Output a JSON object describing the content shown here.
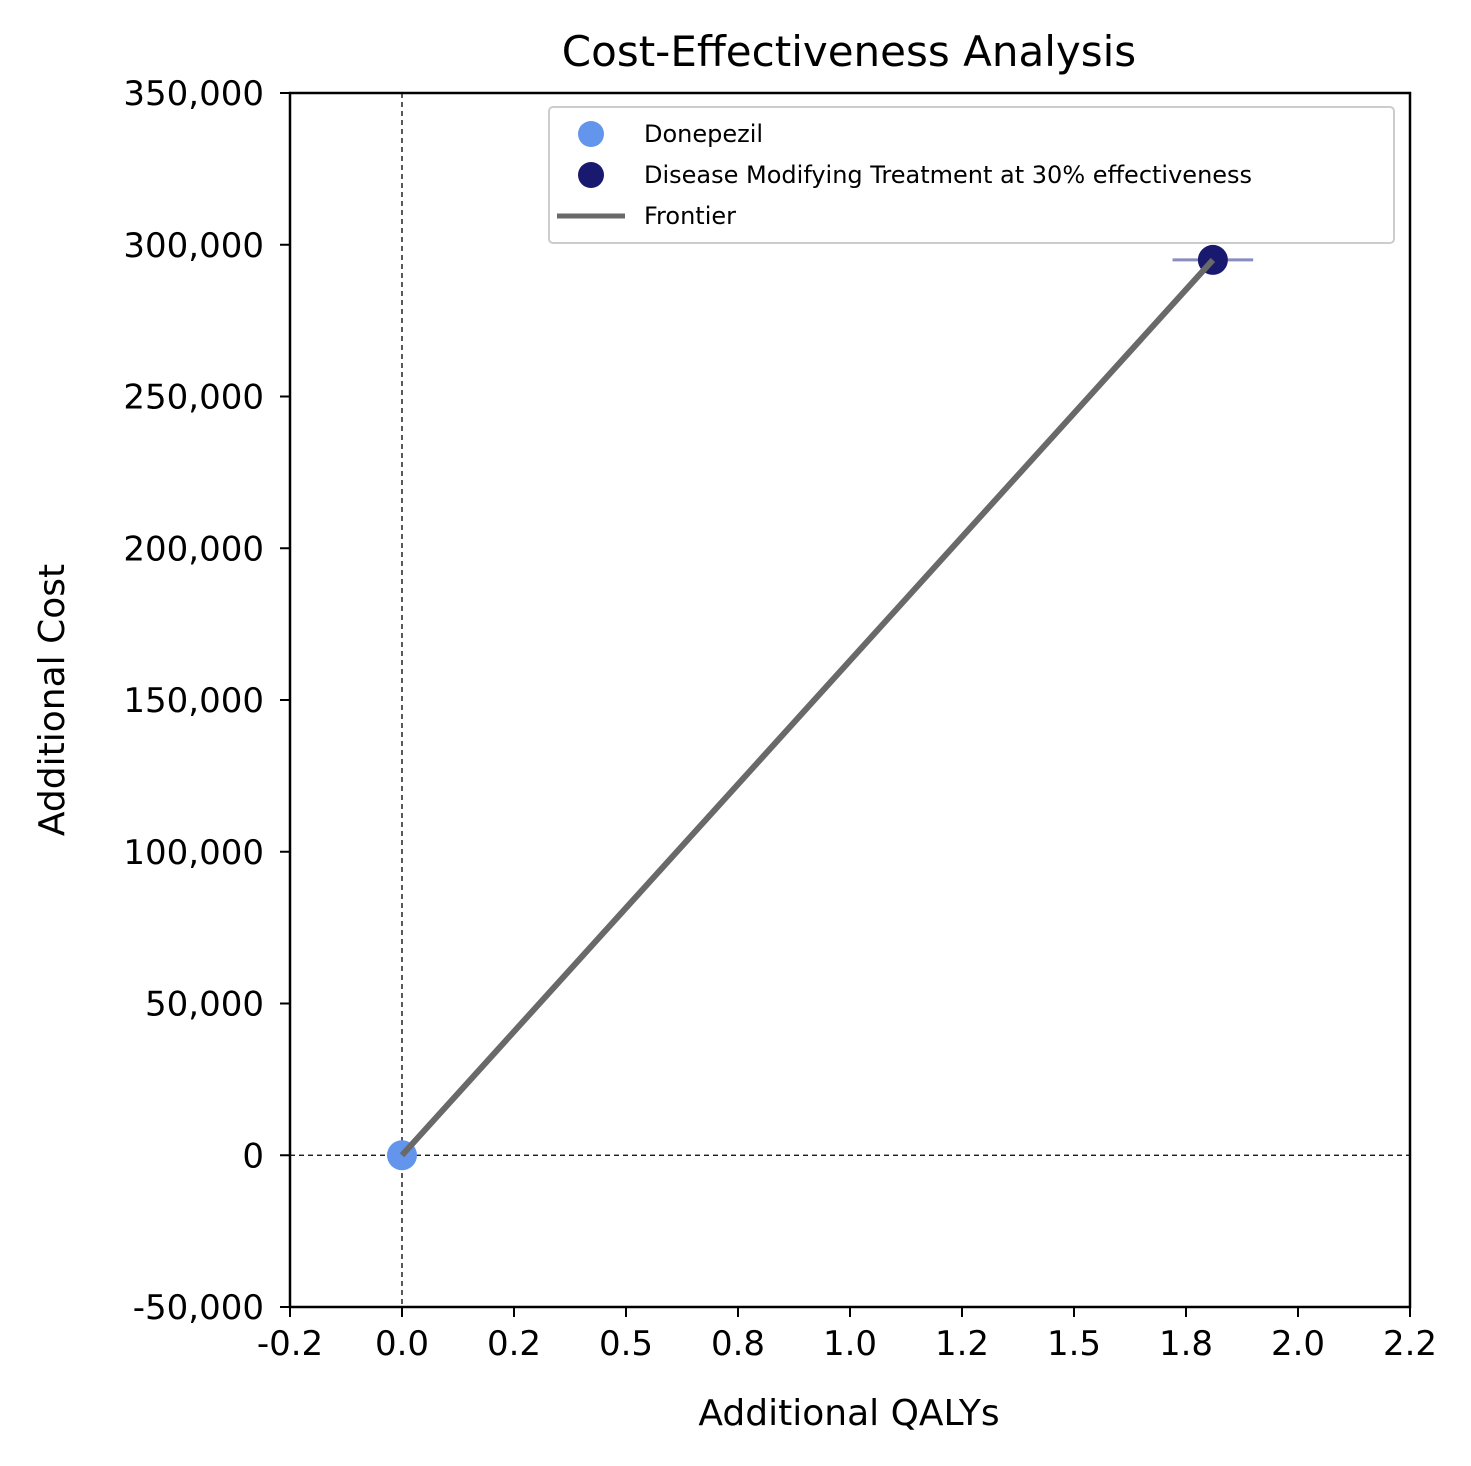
{
  "chart_data": {
    "type": "scatter",
    "title": "Cost-Effectiveness Analysis",
    "xlabel": "Additional QALYs",
    "ylabel": "Additional Cost",
    "xlim": [
      -0.25,
      2.25
    ],
    "ylim": [
      -50000,
      350000
    ],
    "x_ticks": [
      -0.25,
      0.0,
      0.25,
      0.5,
      0.75,
      1.0,
      1.25,
      1.5,
      1.75,
      2.0,
      2.25
    ],
    "x_tick_labels": [
      "-0.2",
      "0.0",
      "0.2",
      "0.5",
      "0.8",
      "1.0",
      "1.2",
      "1.5",
      "1.8",
      "2.0",
      "2.2"
    ],
    "y_ticks": [
      -50000,
      0,
      50000,
      100000,
      150000,
      200000,
      250000,
      300000,
      350000
    ],
    "y_tick_labels": [
      "-50,000",
      "0",
      "50,000",
      "100,000",
      "150,000",
      "200,000",
      "250,000",
      "300,000",
      "350,000"
    ],
    "grid": false,
    "reference_lines": {
      "x": 0,
      "y": 0,
      "style": "dashed"
    },
    "legend_position": "upper-right",
    "series": [
      {
        "name": "Donepezil",
        "kind": "scatter",
        "color": "#6495ED",
        "points": [
          {
            "x": 0.0,
            "y": 0
          }
        ]
      },
      {
        "name": "Disease Modifying Treatment at 30% effectiveness",
        "kind": "scatter",
        "color": "#191970",
        "points": [
          {
            "x": 1.81,
            "y": 295000,
            "x_err": [
              1.72,
              1.9
            ]
          }
        ]
      },
      {
        "name": "Frontier",
        "kind": "line",
        "color": "#696969",
        "points": [
          {
            "x": 0.0,
            "y": 0
          },
          {
            "x": 1.81,
            "y": 295000
          }
        ]
      }
    ]
  }
}
